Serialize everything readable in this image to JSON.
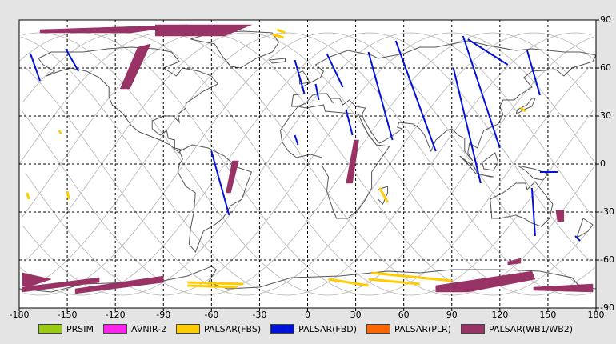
{
  "map": {
    "lon_ticks": [
      "-180",
      "-150",
      "-120",
      "-90",
      "-60",
      "-30",
      "0",
      "30",
      "60",
      "90",
      "120",
      "150",
      "180"
    ],
    "lat_ticks": [
      "90",
      "60",
      "30",
      "0",
      "-30",
      "-60",
      "-90"
    ],
    "lon_range": [
      -180,
      180
    ],
    "lat_range": [
      -90,
      90
    ],
    "grid": true,
    "ocean_color": "#ffffff",
    "land_outline_color": "#555555",
    "orbit_track_color": "#bbbbbb"
  },
  "legend": {
    "items": [
      {
        "label": "PRSIM",
        "color": "#99cc11"
      },
      {
        "label": "AVNIR-2",
        "color": "#ff22ee"
      },
      {
        "label": "PALSAR(FBS)",
        "color": "#ffcc00"
      },
      {
        "label": "PALSAR(FBD)",
        "color": "#0011dd"
      },
      {
        "label": "PALSAR(PLR)",
        "color": "#ff6600"
      },
      {
        "label": "PALSAR(WB1/WB2)",
        "color": "#993366"
      }
    ]
  },
  "acquisitions": [
    {
      "sensor": "PALSAR(WB1/WB2)",
      "path": [
        [
          -167,
          84
        ],
        [
          -75,
          87
        ],
        [
          -110,
          82
        ],
        [
          -167,
          82
        ]
      ]
    },
    {
      "sensor": "PALSAR(WB1/WB2)",
      "path": [
        [
          -95,
          87
        ],
        [
          -35,
          87
        ],
        [
          -52,
          80
        ],
        [
          -95,
          80
        ]
      ]
    },
    {
      "sensor": "PALSAR(WB1/WB2)",
      "path": [
        [
          -106,
          73
        ],
        [
          -98,
          75
        ],
        [
          -111,
          47
        ],
        [
          -117,
          47
        ]
      ]
    },
    {
      "sensor": "PALSAR(WB1/WB2)",
      "path": [
        [
          -47,
          2
        ],
        [
          -43,
          2
        ],
        [
          -48,
          -18
        ],
        [
          -51,
          -18
        ]
      ]
    },
    {
      "sensor": "PALSAR(WB1/WB2)",
      "path": [
        [
          29,
          15
        ],
        [
          32,
          15
        ],
        [
          28,
          -12
        ],
        [
          24,
          -12
        ]
      ]
    },
    {
      "sensor": "PALSAR(WB1/WB2)",
      "path": [
        [
          -178,
          -68
        ],
        [
          -160,
          -72
        ],
        [
          -175,
          -77
        ],
        [
          -178,
          -76
        ]
      ]
    },
    {
      "sensor": "PALSAR(WB1/WB2)",
      "path": [
        [
          -178,
          -77
        ],
        [
          -130,
          -71
        ],
        [
          -130,
          -74
        ],
        [
          -178,
          -80
        ]
      ]
    },
    {
      "sensor": "PALSAR(WB1/WB2)",
      "path": [
        [
          -145,
          -78
        ],
        [
          -90,
          -70
        ],
        [
          -90,
          -74
        ],
        [
          -145,
          -81
        ]
      ]
    },
    {
      "sensor": "PALSAR(WB1/WB2)",
      "path": [
        [
          80,
          -76
        ],
        [
          140,
          -67
        ],
        [
          142,
          -72
        ],
        [
          100,
          -80
        ],
        [
          80,
          -80
        ]
      ]
    },
    {
      "sensor": "PALSAR(WB1/WB2)",
      "path": [
        [
          125,
          -61
        ],
        [
          133,
          -59
        ],
        [
          133,
          -62
        ],
        [
          125,
          -63
        ]
      ]
    },
    {
      "sensor": "PALSAR(WB1/WB2)",
      "path": [
        [
          141,
          -77
        ],
        [
          178,
          -75
        ],
        [
          178,
          -80
        ],
        [
          141,
          -79
        ]
      ]
    },
    {
      "sensor": "PALSAR(WB1/WB2)",
      "path": [
        [
          155,
          -29
        ],
        [
          160,
          -29
        ],
        [
          160,
          -36
        ],
        [
          156,
          -36
        ]
      ]
    },
    {
      "sensor": "PALSAR(FBD)",
      "path": [
        [
          -173,
          69
        ],
        [
          -167,
          52
        ]
      ]
    },
    {
      "sensor": "PALSAR(FBD)",
      "path": [
        [
          -151,
          72
        ],
        [
          -143,
          58
        ]
      ]
    },
    {
      "sensor": "PALSAR(FBD)",
      "path": [
        [
          -60,
          8
        ],
        [
          -49,
          -32
        ]
      ]
    },
    {
      "sensor": "PALSAR(FBD)",
      "path": [
        [
          -8,
          65
        ],
        [
          -2,
          44
        ]
      ]
    },
    {
      "sensor": "PALSAR(FBD)",
      "path": [
        [
          5,
          50
        ],
        [
          7,
          40
        ]
      ]
    },
    {
      "sensor": "PALSAR(FBD)",
      "path": [
        [
          12,
          69
        ],
        [
          22,
          48
        ]
      ]
    },
    {
      "sensor": "PALSAR(FBD)",
      "path": [
        [
          24,
          34
        ],
        [
          28,
          18
        ]
      ]
    },
    {
      "sensor": "PALSAR(FBD)",
      "path": [
        [
          38,
          70
        ],
        [
          53,
          15
        ]
      ]
    },
    {
      "sensor": "PALSAR(FBD)",
      "path": [
        [
          55,
          77
        ],
        [
          80,
          8
        ]
      ]
    },
    {
      "sensor": "PALSAR(FBD)",
      "path": [
        [
          97,
          80
        ],
        [
          120,
          10
        ]
      ]
    },
    {
      "sensor": "PALSAR(FBD)",
      "path": [
        [
          91,
          60
        ],
        [
          108,
          -12
        ]
      ]
    },
    {
      "sensor": "PALSAR(FBD)",
      "path": [
        [
          100,
          78
        ],
        [
          125,
          62
        ]
      ]
    },
    {
      "sensor": "PALSAR(FBD)",
      "path": [
        [
          137,
          71
        ],
        [
          145,
          43
        ]
      ]
    },
    {
      "sensor": "PALSAR(FBD)",
      "path": [
        [
          145,
          -5
        ],
        [
          156,
          -5
        ]
      ]
    },
    {
      "sensor": "PALSAR(FBD)",
      "path": [
        [
          140,
          -15
        ],
        [
          142,
          -45
        ]
      ]
    },
    {
      "sensor": "PALSAR(FBD)",
      "path": [
        [
          167,
          -45
        ],
        [
          170,
          -48
        ]
      ]
    },
    {
      "sensor": "PALSAR(FBD)",
      "path": [
        [
          -8,
          18
        ],
        [
          -6,
          12
        ]
      ]
    },
    {
      "sensor": "PALSAR(FBS)",
      "path": [
        [
          -22,
          81
        ],
        [
          -15,
          79
        ]
      ]
    },
    {
      "sensor": "PALSAR(FBS)",
      "path": [
        [
          -19,
          84
        ],
        [
          -14,
          82
        ]
      ]
    },
    {
      "sensor": "PALSAR(FBS)",
      "path": [
        [
          45,
          -15
        ],
        [
          50,
          -24
        ]
      ]
    },
    {
      "sensor": "PALSAR(FBS)",
      "path": [
        [
          -75,
          -74
        ],
        [
          -40,
          -75
        ]
      ]
    },
    {
      "sensor": "PALSAR(FBS)",
      "path": [
        [
          -75,
          -76
        ],
        [
          -44,
          -77
        ]
      ]
    },
    {
      "sensor": "PALSAR(FBS)",
      "path": [
        [
          38,
          -72
        ],
        [
          70,
          -75
        ]
      ]
    },
    {
      "sensor": "PALSAR(FBS)",
      "path": [
        [
          40,
          -68
        ],
        [
          90,
          -73
        ]
      ]
    },
    {
      "sensor": "PALSAR(FBS)",
      "path": [
        [
          13,
          -72
        ],
        [
          38,
          -76
        ]
      ]
    },
    {
      "sensor": "PALSAR(FBS)",
      "path": [
        [
          133,
          35
        ],
        [
          136,
          33
        ]
      ]
    },
    {
      "sensor": "PALSAR(FBS)",
      "path": [
        [
          -175,
          -18
        ],
        [
          -174,
          -22
        ]
      ]
    },
    {
      "sensor": "PALSAR(FBS)",
      "path": [
        [
          -150,
          -17
        ],
        [
          -149,
          -22
        ]
      ]
    },
    {
      "sensor": "PALSAR(FBS)",
      "path": [
        [
          -155,
          21
        ],
        [
          -154,
          19
        ]
      ]
    }
  ]
}
